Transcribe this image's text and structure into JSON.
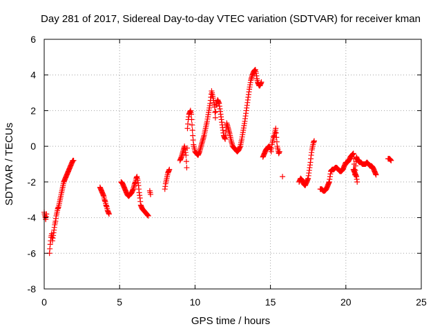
{
  "chart_data": {
    "type": "scatter",
    "title": "Day 281 of 2017, Sidereal Day-to-day VTEC variation (SDTVAR) for receiver kman",
    "xlabel": "GPS time / hours",
    "ylabel": "SDTVAR / TECUs",
    "xlim": [
      0,
      25
    ],
    "ylim": [
      -8,
      6
    ],
    "x_ticks": [
      0,
      5,
      10,
      15,
      20,
      25
    ],
    "x_tick_labels": [
      "0",
      "5",
      "10",
      "15",
      "20",
      "25"
    ],
    "y_ticks": [
      -8,
      -6,
      -4,
      -2,
      0,
      2,
      4,
      6
    ],
    "y_tick_labels": [
      "-8",
      "-6",
      "-4",
      "-2",
      "0",
      "2",
      "4",
      "6"
    ],
    "grid": true,
    "marker": "plus",
    "marker_color": "#ff0000",
    "trace": [
      {
        "x": [
          0.0,
          0.05,
          0.1,
          0.15
        ],
        "y": [
          -3.7,
          -3.9,
          -4.1,
          -3.8
        ]
      },
      {
        "x": [
          0.35,
          0.4,
          0.45,
          0.5,
          0.55,
          0.6,
          0.65,
          0.7,
          0.75,
          0.8,
          0.85,
          0.9,
          0.95,
          1.0,
          1.05,
          1.1,
          1.15,
          1.2,
          1.25,
          1.3,
          1.35,
          1.4,
          1.45,
          1.5,
          1.55,
          1.6,
          1.65,
          1.7,
          1.75,
          1.8,
          1.85,
          1.9,
          1.95
        ],
        "y": [
          -6.0,
          -5.5,
          -5.1,
          -4.9,
          -5.3,
          -5.0,
          -4.7,
          -4.4,
          -4.2,
          -3.9,
          -3.7,
          -3.5,
          -3.4,
          -3.2,
          -3.0,
          -2.8,
          -2.6,
          -2.4,
          -2.2,
          -2.0,
          -1.9,
          -1.8,
          -1.7,
          -1.6,
          -1.5,
          -1.4,
          -1.3,
          -1.2,
          -1.1,
          -1.0,
          -0.9,
          -0.8,
          -0.8
        ]
      },
      {
        "x": [
          3.7,
          3.75,
          3.8,
          3.85,
          3.9,
          3.95,
          4.0,
          4.05,
          4.1,
          4.15,
          4.2,
          4.25,
          4.3
        ],
        "y": [
          -2.3,
          -2.4,
          -2.5,
          -2.6,
          -2.7,
          -2.8,
          -3.0,
          -3.1,
          -3.3,
          -3.4,
          -3.6,
          -3.7,
          -3.8
        ]
      },
      {
        "x": [
          5.1,
          5.2,
          5.3,
          5.4,
          5.5,
          5.6,
          5.7,
          5.8,
          5.9,
          6.0,
          6.05,
          6.1,
          6.15,
          6.2,
          6.25,
          6.3,
          6.35,
          6.4,
          6.5,
          6.6,
          6.7,
          6.8,
          6.9
        ],
        "y": [
          -2.0,
          -2.1,
          -2.3,
          -2.5,
          -2.7,
          -2.8,
          -2.7,
          -2.6,
          -2.4,
          -2.1,
          -2.0,
          -1.8,
          -1.7,
          -1.9,
          -2.2,
          -2.6,
          -2.9,
          -3.3,
          -3.5,
          -3.6,
          -3.7,
          -3.8,
          -3.9
        ]
      },
      {
        "x": [
          7.0,
          7.05
        ],
        "y": [
          -2.5,
          -2.7
        ]
      },
      {
        "x": [
          8.0,
          8.05,
          8.1,
          8.15,
          8.2,
          8.25,
          8.3
        ],
        "y": [
          -2.4,
          -2.1,
          -1.9,
          -1.7,
          -1.5,
          -1.4,
          -1.3
        ]
      },
      {
        "x": [
          9.0,
          9.1,
          9.2,
          9.3,
          9.35,
          9.4,
          9.45,
          9.5,
          9.55,
          9.6,
          9.65,
          9.7,
          9.75,
          9.8,
          9.85,
          9.9,
          9.95,
          10.0,
          10.1,
          10.2,
          10.3,
          10.4,
          10.5,
          10.6,
          10.7,
          10.8,
          10.9,
          11.0,
          11.1,
          11.2,
          11.3,
          11.35,
          11.4,
          11.5,
          11.6,
          11.7,
          11.8,
          11.9,
          12.0,
          12.1,
          12.2,
          12.3,
          12.4,
          12.5,
          12.6,
          12.7,
          12.8,
          12.9,
          13.0,
          13.1,
          13.2,
          13.3,
          13.4,
          13.5,
          13.6,
          13.7,
          13.8,
          13.9,
          14.0,
          14.05,
          14.1,
          14.15,
          14.2,
          14.25,
          14.3,
          14.35,
          14.4
        ],
        "y": [
          -0.8,
          -0.6,
          -0.3,
          0.0,
          -0.2,
          -0.5,
          -1.2,
          1.0,
          1.5,
          1.8,
          1.9,
          2.0,
          1.8,
          1.2,
          0.6,
          0.1,
          -0.1,
          -0.3,
          -0.4,
          -0.5,
          -0.3,
          0.0,
          0.3,
          0.6,
          1.0,
          1.4,
          1.9,
          2.4,
          3.1,
          2.7,
          2.2,
          1.6,
          2.3,
          2.6,
          2.4,
          1.8,
          1.2,
          0.6,
          0.4,
          1.3,
          1.0,
          0.7,
          0.3,
          0.0,
          -0.1,
          -0.2,
          -0.3,
          -0.2,
          0.0,
          0.4,
          0.9,
          1.4,
          2.0,
          2.6,
          3.2,
          3.7,
          4.0,
          4.2,
          4.3,
          4.1,
          3.8,
          3.6,
          3.5,
          3.4,
          3.4,
          3.5,
          3.6
        ]
      },
      {
        "x": [
          14.5,
          14.6,
          14.7,
          14.8,
          14.9,
          15.0,
          15.05,
          15.1,
          15.15,
          15.2,
          15.25,
          15.3,
          15.35,
          15.4,
          15.45,
          15.5,
          15.55,
          15.6
        ],
        "y": [
          -0.6,
          -0.4,
          -0.2,
          -0.1,
          0.0,
          -0.1,
          -0.3,
          0.1,
          0.3,
          0.5,
          0.6,
          0.8,
          1.0,
          0.5,
          0.0,
          -0.2,
          -0.4,
          -0.3
        ]
      },
      {
        "x": [
          15.8
        ],
        "y": [
          -1.7
        ]
      },
      {
        "x": [
          16.9,
          17.0,
          17.1,
          17.2,
          17.3,
          17.4,
          17.5,
          17.55,
          17.6,
          17.65,
          17.7,
          17.75,
          17.8,
          17.85,
          17.9
        ],
        "y": [
          -2.0,
          -1.8,
          -1.9,
          -2.1,
          -2.2,
          -2.0,
          -1.8,
          -1.5,
          -1.2,
          -0.9,
          -0.5,
          -0.2,
          0.0,
          0.2,
          0.3
        ]
      },
      {
        "x": [
          18.3,
          18.4,
          18.5,
          18.6,
          18.7,
          18.8,
          18.9,
          19.0,
          19.1,
          19.2,
          19.3,
          19.4,
          19.5,
          19.6,
          19.7,
          19.8,
          19.9,
          20.0,
          20.1,
          20.2,
          20.3,
          20.4,
          20.5,
          20.6,
          20.7,
          20.8,
          20.9,
          21.0,
          21.1,
          21.2,
          21.3,
          21.4,
          21.5,
          21.6,
          21.7,
          21.8,
          21.9,
          22.0
        ],
        "y": [
          -2.4,
          -2.4,
          -2.5,
          -2.5,
          -2.4,
          -2.2,
          -2.0,
          -1.4,
          -1.3,
          -1.3,
          -1.2,
          -1.2,
          -1.3,
          -1.4,
          -1.4,
          -1.3,
          -1.1,
          -0.9,
          -0.9,
          -0.8,
          -0.6,
          -0.5,
          -0.4,
          -1.6,
          -0.6,
          -0.8,
          -0.9,
          -0.9,
          -1.0,
          -1.0,
          -1.0,
          -0.9,
          -1.0,
          -1.1,
          -1.1,
          -1.2,
          -1.4,
          -1.6
        ]
      },
      {
        "x": [
          20.5,
          20.6,
          20.7,
          20.75
        ],
        "y": [
          -1.3,
          -1.5,
          -1.7,
          -2.0
        ]
      },
      {
        "x": [
          22.8,
          22.9,
          23.0
        ],
        "y": [
          -0.7,
          -0.7,
          -0.8
        ]
      }
    ]
  }
}
